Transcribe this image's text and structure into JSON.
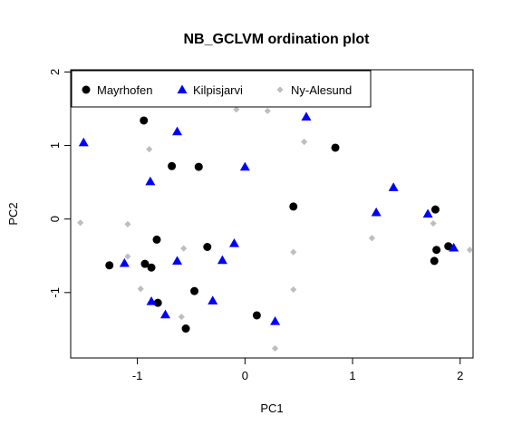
{
  "chart_data": {
    "type": "scatter",
    "title": "NB_GCLVM ordination plot",
    "xlabel": "PC1",
    "ylabel": "PC2",
    "xlim": [
      -1.62,
      2.12
    ],
    "ylim": [
      -1.89,
      2.03
    ],
    "xticks": [
      -1,
      0,
      1,
      2
    ],
    "yticks": [
      -1,
      0,
      1,
      2
    ],
    "xtick_labels": [
      "-1",
      "0",
      "1",
      "2"
    ],
    "ytick_labels": [
      "-1",
      "0",
      "1",
      "2"
    ],
    "legend_position": "top-left",
    "series": [
      {
        "name": "Mayrhofen",
        "marker": "circle",
        "color": "#000000",
        "points": [
          [
            -0.94,
            1.34
          ],
          [
            -0.68,
            0.72
          ],
          [
            -0.43,
            0.71
          ],
          [
            0.84,
            0.97
          ],
          [
            0.45,
            0.17
          ],
          [
            -0.82,
            -0.28
          ],
          [
            -0.35,
            -0.38
          ],
          [
            -1.26,
            -0.63
          ],
          [
            -0.93,
            -0.61
          ],
          [
            -0.87,
            -0.66
          ],
          [
            -0.81,
            -1.14
          ],
          [
            -0.47,
            -0.98
          ],
          [
            -0.55,
            -1.49
          ],
          [
            0.11,
            -1.31
          ],
          [
            1.77,
            0.13
          ],
          [
            1.78,
            -0.42
          ],
          [
            1.76,
            -0.57
          ],
          [
            1.89,
            -0.37
          ]
        ]
      },
      {
        "name": "Kilpisjarvi",
        "marker": "triangle",
        "color": "#0000ff",
        "points": [
          [
            -1.5,
            1.04
          ],
          [
            -0.63,
            1.19
          ],
          [
            0.0,
            0.71
          ],
          [
            0.57,
            1.39
          ],
          [
            -0.88,
            0.51
          ],
          [
            1.38,
            0.43
          ],
          [
            1.22,
            0.09
          ],
          [
            1.7,
            0.07
          ],
          [
            1.94,
            -0.39
          ],
          [
            -0.1,
            -0.33
          ],
          [
            -0.21,
            -0.56
          ],
          [
            -0.63,
            -0.57
          ],
          [
            -1.12,
            -0.6
          ],
          [
            -0.87,
            -1.12
          ],
          [
            -0.74,
            -1.3
          ],
          [
            -0.3,
            -1.11
          ],
          [
            0.28,
            -1.39
          ]
        ]
      },
      {
        "name": "Ny-Alesund",
        "marker": "diamond",
        "color": "#bebebe",
        "points": [
          [
            -0.08,
            1.49
          ],
          [
            0.21,
            1.47
          ],
          [
            -0.89,
            0.95
          ],
          [
            0.55,
            1.05
          ],
          [
            -1.53,
            -0.05
          ],
          [
            -1.09,
            -0.07
          ],
          [
            -0.57,
            -0.4
          ],
          [
            0.45,
            -0.45
          ],
          [
            1.18,
            -0.26
          ],
          [
            1.75,
            -0.06
          ],
          [
            2.09,
            -0.42
          ],
          [
            -1.09,
            -0.51
          ],
          [
            -0.97,
            -0.95
          ],
          [
            -0.59,
            -1.33
          ],
          [
            0.45,
            -0.96
          ],
          [
            0.28,
            -1.76
          ]
        ]
      }
    ]
  }
}
